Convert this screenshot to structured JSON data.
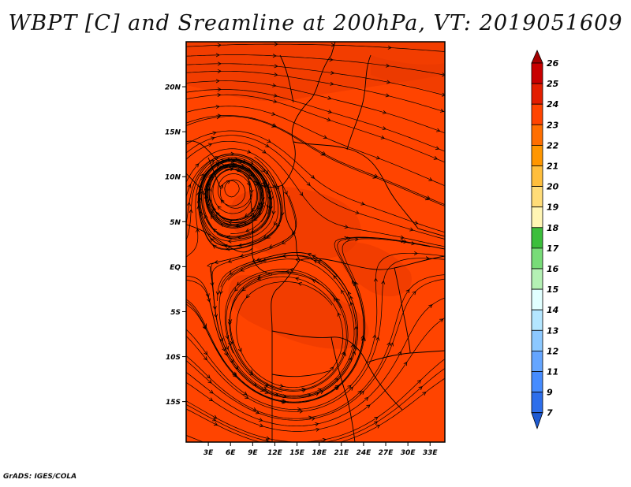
{
  "title": "WBPT [C] and Sreamline at 200hPa, VT: 2019051609",
  "footer": "GrADS: IGES/COLA",
  "map": {
    "lat_labels": [
      "20N",
      "15N",
      "10N",
      "5N",
      "EQ",
      "5S",
      "10S",
      "15S"
    ],
    "lon_labels": [
      "3E",
      "6E",
      "9E",
      "12E",
      "15E",
      "18E",
      "21E",
      "24E",
      "27E",
      "30E",
      "33E"
    ],
    "lat_values": [
      20,
      15,
      10,
      5,
      0,
      -5,
      -10,
      -15
    ],
    "lon_values": [
      3,
      6,
      9,
      12,
      15,
      18,
      21,
      24,
      27,
      30,
      33
    ],
    "lon_range": [
      0,
      35
    ],
    "lat_range": [
      -19.5,
      25
    ],
    "colors": {
      "background_field": "#ff4400",
      "warm_patch": "#e83800",
      "streamline": "#000000"
    }
  },
  "colorbar": {
    "levels": [
      "26",
      "25",
      "24",
      "23",
      "22",
      "21",
      "20",
      "19",
      "18",
      "17",
      "16",
      "15",
      "14",
      "13",
      "12",
      "11",
      "9",
      "7"
    ],
    "colors": [
      "#a50000",
      "#c80000",
      "#e31e00",
      "#ff4400",
      "#ff6e00",
      "#ff9600",
      "#ffbe3c",
      "#ffdc78",
      "#fff5b4",
      "#3cbe3c",
      "#78dc78",
      "#b4f0b4",
      "#e1ffff",
      "#b4e6ff",
      "#8cc8ff",
      "#64a5ff",
      "#468cff",
      "#2d6eeb",
      "#1e5ad2"
    ]
  }
}
